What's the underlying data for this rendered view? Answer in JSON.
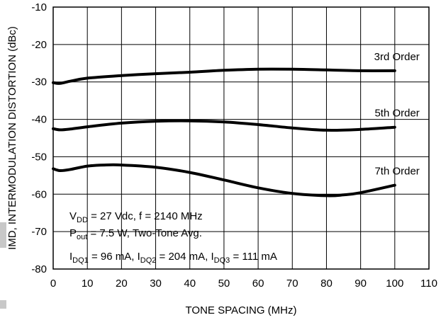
{
  "chart_data": {
    "type": "line",
    "title": "",
    "xlabel": "TONE SPACING (MHz)",
    "ylabel": "IMD, INTERMODULATION DISTORTION (dBc)",
    "xlim": [
      0,
      110
    ],
    "ylim": [
      -80,
      -10
    ],
    "xticks": [
      "0",
      "10",
      "20",
      "30",
      "40",
      "50",
      "60",
      "70",
      "80",
      "90",
      "100",
      "110"
    ],
    "yticks": [
      "-10",
      "-20",
      "-30",
      "-40",
      "-50",
      "-60",
      "-70",
      "-80"
    ],
    "grid": true,
    "series": [
      {
        "name": "3rd Order",
        "x": [
          0,
          2,
          5,
          10,
          20,
          30,
          40,
          50,
          60,
          70,
          80,
          90,
          100
        ],
        "y": [
          -30.2,
          -30.4,
          -29.8,
          -29.0,
          -28.3,
          -27.8,
          -27.4,
          -26.9,
          -26.6,
          -26.6,
          -26.8,
          -27.0,
          -27.0
        ]
      },
      {
        "name": "5th Order",
        "x": [
          0,
          2,
          5,
          10,
          20,
          30,
          40,
          50,
          60,
          70,
          80,
          90,
          100
        ],
        "y": [
          -42.5,
          -42.8,
          -42.6,
          -42.0,
          -41.0,
          -40.5,
          -40.4,
          -40.7,
          -41.4,
          -42.3,
          -42.9,
          -42.7,
          -42.1
        ]
      },
      {
        "name": "7th Order",
        "x": [
          0,
          2,
          5,
          10,
          15,
          20,
          30,
          40,
          50,
          60,
          70,
          80,
          85,
          90,
          100
        ],
        "y": [
          -53.2,
          -53.7,
          -53.4,
          -52.5,
          -52.2,
          -52.2,
          -52.8,
          -54.2,
          -56.2,
          -58.3,
          -59.8,
          -60.4,
          -60.2,
          -59.6,
          -57.6
        ]
      }
    ],
    "annotations": {
      "line1": {
        "a": "V",
        "a_sub": "DD",
        "b": " = 27 Vdc, f = 2140 MHz"
      },
      "line2": {
        "a": "P",
        "a_sub": "out",
        "b": " = 7.5 W, Two-Tone Avg."
      },
      "line3": {
        "a": "I",
        "a_sub": "DQ1",
        "b": " = 96 mA, I",
        "b_sub": "DQ2",
        "c": " = 204 mA, I",
        "c_sub": "DQ3",
        "d": " = 111 mA"
      }
    }
  }
}
